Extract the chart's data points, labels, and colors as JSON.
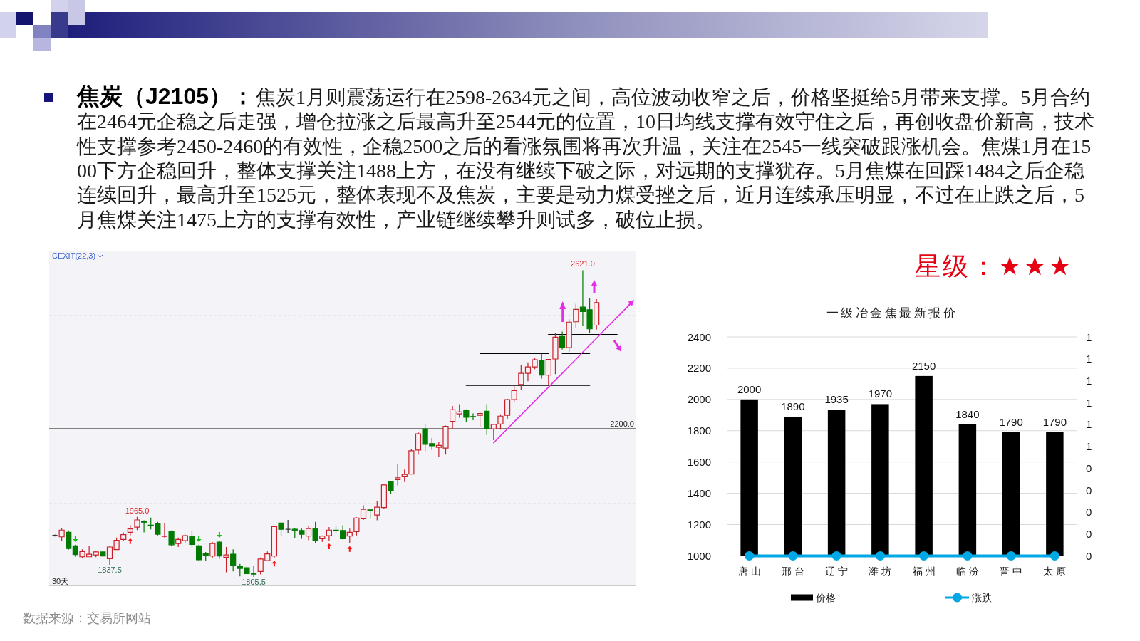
{
  "chart_data": [
    {
      "type": "other",
      "title": "焦炭（J2105）：",
      "annotations": [
        "焦炭1月则震荡运行在2598-2634元之间，高位波动收窄之后，价格坚挺给5月带来支撑。5月合约在2464元企稳之后走强，增仓拉涨之后最高升至2544元的位置，10日均线支撑有效守住之后，再创收盘价新高，技术性支撑参考2450-2460的有效性，企稳2500之后的看涨氛围将再次升温，关注在2545一线突破跟涨机会。焦煤1月在1500下方企稳回升，整体支撑关注1488上方，在没有继续下破之际，对远期的支撑犹存。5月焦煤在回踩1484之后企稳连续回升，最高升至1525元，整体表现不及焦炭，主要是动力煤受挫之后，近月连续承压明显，不过在止跌之后，5月焦煤关注1475上方的支撑有效性，产业链继续攀升则试多，破位止损。",
        "数据来源：交易所网站"
      ]
    },
    {
      "type": "candlestick",
      "categories": [
        null,
        null,
        null,
        null,
        null,
        null,
        null,
        null,
        null,
        null,
        null,
        null,
        null,
        null,
        null,
        null,
        null,
        null,
        null,
        null,
        null,
        null,
        null,
        null,
        null,
        null,
        null,
        null,
        null,
        null,
        null,
        null,
        null,
        null,
        null,
        null,
        null,
        null,
        null,
        null,
        null,
        null,
        null,
        null,
        null,
        null,
        null,
        null,
        null,
        null,
        null,
        null,
        null,
        null,
        null,
        null,
        null,
        null,
        null,
        null,
        null,
        null,
        null,
        null,
        null,
        null,
        null,
        null,
        null,
        null,
        null,
        null,
        null,
        null,
        null,
        null,
        null,
        null,
        null,
        null,
        null,
        null,
        null,
        null,
        null
      ],
      "ohlc": [
        [
          1916,
          1918,
          1913,
          1916
        ],
        [
          1912,
          1936,
          1902,
          1930
        ],
        [
          1924,
          1929,
          1878,
          1881
        ],
        [
          1888,
          1891,
          1859,
          1865
        ],
        [
          1859,
          1879,
          1856,
          1873
        ],
        [
          1859,
          1888,
          1859,
          1866
        ],
        [
          1864,
          1875,
          1858,
          1872
        ],
        [
          1872,
          1873,
          1859,
          1861
        ],
        [
          1854,
          1889,
          1837.5,
          1885
        ],
        [
          1878,
          1910,
          1878,
          1903
        ],
        [
          1905,
          1924,
          1902,
          1918
        ],
        [
          1924,
          1943,
          1916,
          1933
        ],
        [
          1938,
          1965,
          1930,
          1957
        ],
        [
          1954,
          1956,
          1924,
          1951
        ],
        [
          1943,
          1963,
          1932,
          1942
        ],
        [
          1948,
          1952,
          1916,
          1919
        ],
        [
          1913,
          1948,
          1910,
          1914
        ],
        [
          1927,
          1929,
          1888,
          1891
        ],
        [
          1894,
          1910,
          1885,
          1905
        ],
        [
          1902,
          1918,
          1897,
          1915
        ],
        [
          1913,
          1929,
          1885,
          1892
        ],
        [
          1888,
          1891,
          1847,
          1851
        ],
        [
          1867,
          1872,
          1847,
          1862
        ],
        [
          1861,
          1898,
          1857,
          1894
        ],
        [
          1898,
          1902,
          1854,
          1861
        ],
        [
          1858,
          1885,
          1818,
          1864
        ],
        [
          1866,
          1879,
          1820,
          1835
        ],
        [
          1834,
          1840,
          1807,
          1828
        ],
        [
          1830,
          1833,
          1812,
          1814
        ],
        [
          1814,
          1834,
          1805.5,
          1813
        ],
        [
          1820,
          1857,
          1812,
          1853
        ],
        [
          1849,
          1873,
          1847,
          1867
        ],
        [
          1861,
          1941,
          1856,
          1939
        ],
        [
          1949,
          1951,
          1914,
          1932
        ],
        [
          1932,
          1957,
          1922,
          1932
        ],
        [
          1932,
          1935,
          1908,
          1929
        ],
        [
          1929,
          1934,
          1907,
          1919
        ],
        [
          1914,
          1941,
          1903,
          1934
        ],
        [
          1934,
          1952,
          1895,
          1902
        ],
        [
          1907,
          1916,
          1899,
          1914
        ],
        [
          1915,
          1938,
          1902,
          1930
        ],
        [
          1930,
          1941,
          1921,
          1929
        ],
        [
          1929,
          1943,
          1905,
          1907
        ],
        [
          1914,
          1934,
          1895,
          1924
        ],
        [
          1926,
          1964,
          1916,
          1962
        ],
        [
          1960,
          1996,
          1957,
          1985
        ],
        [
          1984,
          1985,
          1960,
          1981
        ],
        [
          1970,
          2008,
          1956,
          1991
        ],
        [
          1990,
          2052,
          1987,
          2050
        ],
        [
          2059,
          2061,
          2027,
          2036
        ],
        [
          2064,
          2105,
          2049,
          2069
        ],
        [
          2072,
          2091,
          2058,
          2078
        ],
        [
          2079,
          2145,
          2079,
          2141
        ],
        [
          2143,
          2192,
          2131,
          2186
        ],
        [
          2199,
          2211,
          2140,
          2158
        ],
        [
          2160,
          2175,
          2143,
          2154
        ],
        [
          2150,
          2164,
          2124,
          2155
        ],
        [
          2148,
          2208,
          2131,
          2206
        ],
        [
          2219,
          2260,
          2199,
          2250
        ],
        [
          2239,
          2265,
          2229,
          2244
        ],
        [
          2249,
          2251,
          2217,
          2230
        ],
        [
          2232,
          2240,
          2222,
          2231
        ],
        [
          2235,
          2244,
          2203,
          2240
        ],
        [
          2246,
          2265,
          2183,
          2200
        ],
        [
          2199,
          2212,
          2169,
          2211
        ],
        [
          2212,
          2238,
          2197,
          2233
        ],
        [
          2235,
          2279,
          2225,
          2277
        ],
        [
          2277,
          2314,
          2271,
          2301
        ],
        [
          2317,
          2369,
          2303,
          2347
        ],
        [
          2347,
          2376,
          2326,
          2364
        ],
        [
          2364,
          2388,
          2358,
          2383
        ],
        [
          2380,
          2399,
          2333,
          2342
        ],
        [
          2342,
          2385,
          2316,
          2384
        ],
        [
          2385,
          2455,
          2345,
          2443
        ],
        [
          2445,
          2458,
          2410,
          2416
        ],
        [
          2415,
          2491,
          2404,
          2483
        ],
        [
          2484,
          2532,
          2468,
          2517
        ],
        [
          2523,
          2621,
          2472,
          2511
        ],
        [
          2516,
          2546,
          2455,
          2465
        ],
        [
          2475,
          2544,
          2463,
          2535
        ],
        null,
        null,
        null,
        null,
        null
      ],
      "series": [
        {
          "type": "line",
          "color": "#000000",
          "values": [
            null,
            null,
            null,
            null,
            null,
            null,
            null,
            null,
            null,
            null,
            null,
            null,
            null,
            null,
            null,
            null,
            null,
            null,
            null,
            null,
            null,
            null,
            null,
            null,
            null,
            null,
            null,
            null,
            null,
            null,
            null,
            null,
            null,
            null,
            null,
            null,
            null,
            null,
            null,
            null,
            null,
            null,
            null,
            null,
            null,
            null,
            null,
            null,
            null,
            null,
            null,
            null,
            null,
            null,
            null,
            null,
            null,
            null,
            null,
            null,
            2315,
            2315,
            2315,
            2315,
            2315,
            2315,
            2315,
            2315,
            2315,
            2315,
            2315,
            2315,
            2315,
            2315,
            2315,
            2315,
            2315,
            2315,
            2315,
            null,
            null,
            null,
            null,
            null,
            null
          ]
        },
        {
          "type": "line",
          "color": "#000000",
          "values": [
            null,
            null,
            null,
            null,
            null,
            null,
            null,
            null,
            null,
            null,
            null,
            null,
            null,
            null,
            null,
            null,
            null,
            null,
            null,
            null,
            null,
            null,
            null,
            null,
            null,
            null,
            null,
            null,
            null,
            null,
            null,
            null,
            null,
            null,
            null,
            null,
            null,
            null,
            null,
            null,
            null,
            null,
            null,
            null,
            null,
            null,
            null,
            null,
            null,
            null,
            null,
            null,
            null,
            null,
            null,
            null,
            null,
            null,
            null,
            null,
            null,
            null,
            2400,
            2400,
            2400,
            2400,
            2400,
            2400,
            2400,
            2400,
            2400,
            2400,
            2400,
            null,
            2400,
            2400,
            2400,
            2400,
            2400,
            null,
            null,
            null,
            null,
            null,
            null
          ]
        },
        {
          "type": "line",
          "color": "#000000",
          "values": [
            null,
            null,
            null,
            null,
            null,
            null,
            null,
            null,
            null,
            null,
            null,
            null,
            null,
            null,
            null,
            null,
            null,
            null,
            null,
            null,
            null,
            null,
            null,
            null,
            null,
            null,
            null,
            null,
            null,
            null,
            null,
            null,
            null,
            null,
            null,
            null,
            null,
            null,
            null,
            null,
            null,
            null,
            null,
            null,
            null,
            null,
            null,
            null,
            null,
            null,
            null,
            null,
            null,
            null,
            null,
            null,
            null,
            null,
            null,
            null,
            null,
            null,
            null,
            null,
            null,
            null,
            null,
            null,
            null,
            null,
            null,
            null,
            2450,
            2450,
            2450,
            2450,
            2450,
            2450,
            2450,
            2450,
            2450,
            2450,
            2450,
            null,
            null
          ]
        },
        {
          "type": "line",
          "color": "#e62ee6",
          "values": [
            null,
            null,
            null,
            null,
            null,
            null,
            null,
            null,
            null,
            null,
            null,
            null,
            null,
            null,
            null,
            null,
            null,
            null,
            null,
            null,
            null,
            null,
            null,
            null,
            null,
            null,
            null,
            null,
            null,
            null,
            null,
            null,
            null,
            null,
            null,
            null,
            null,
            null,
            null,
            null,
            null,
            null,
            null,
            null,
            null,
            null,
            null,
            null,
            null,
            null,
            null,
            null,
            null,
            null,
            null,
            null,
            null,
            null,
            null,
            null,
            null,
            null,
            null,
            null,
            2162,
            2181,
            2199,
            2218,
            2236,
            2255,
            2273,
            2292,
            2310,
            2329,
            2347,
            2366,
            2384,
            2403,
            2422,
            2440,
            2459,
            2477,
            2496,
            2514,
            2533
          ]
        }
      ],
      "ref_lines": [
        {
          "axis": "y",
          "value": 2500,
          "color": "#c4c4c4",
          "line_style": "dashed"
        },
        {
          "axis": "y",
          "value": 2200,
          "label": "2200.0",
          "color": "#808080"
        },
        {
          "axis": "y",
          "value": 2000,
          "color": "#c4c4c4",
          "line_style": "dashed"
        }
      ],
      "annotations": [
        "CEXIT(22,3)",
        "30天",
        {
          "text": "2621.0",
          "y": 2621
        },
        {
          "text": "1965.0",
          "y": 1965
        },
        {
          "text": "1837.5",
          "y": 1837.5
        },
        {
          "text": "1805.5",
          "y": 1805.5
        }
      ]
    },
    {
      "type": "bar",
      "title": "一级冶金焦最新报价",
      "categories": [
        "唐山",
        "邢台",
        "辽宁",
        "潍坊",
        "福州",
        "临汾",
        "晋中",
        "太原"
      ],
      "series": [
        {
          "name": "价格",
          "color": "#000000",
          "values": [
            2000,
            1890,
            1935,
            1970,
            2150,
            1840,
            1790,
            1790
          ],
          "value_labels": [
            "2000",
            "1890",
            "1935",
            "1970",
            "2150",
            "1840",
            "1790",
            "1790"
          ]
        },
        {
          "name": "涨跌",
          "type": "line",
          "axis": "y2",
          "color": "#00a8e6",
          "values": [
            0,
            0,
            0,
            0,
            0,
            0,
            0,
            0
          ]
        }
      ],
      "ylim": [
        1000,
        2400
      ],
      "yticks": [
        1000,
        1200,
        1400,
        1600,
        1800,
        2000,
        2200,
        2400
      ],
      "y2lim": [
        0,
        1
      ],
      "y2ticks": [
        0,
        {
          "value": 0.1,
          "label": "0"
        },
        {
          "value": 0.2,
          "label": "0"
        },
        {
          "value": 0.3,
          "label": "0"
        },
        {
          "value": 0.4,
          "label": "0"
        },
        {
          "value": 0.5,
          "label": "1"
        },
        {
          "value": 0.6,
          "label": "1"
        },
        {
          "value": 0.7,
          "label": "1"
        },
        {
          "value": 0.8,
          "label": "1"
        },
        {
          "value": 0.9,
          "label": "1"
        },
        1
      ],
      "grid": "y",
      "legend": "bottom",
      "marker": "circle",
      "annotations": [
        "星级：★★★"
      ]
    }
  ]
}
